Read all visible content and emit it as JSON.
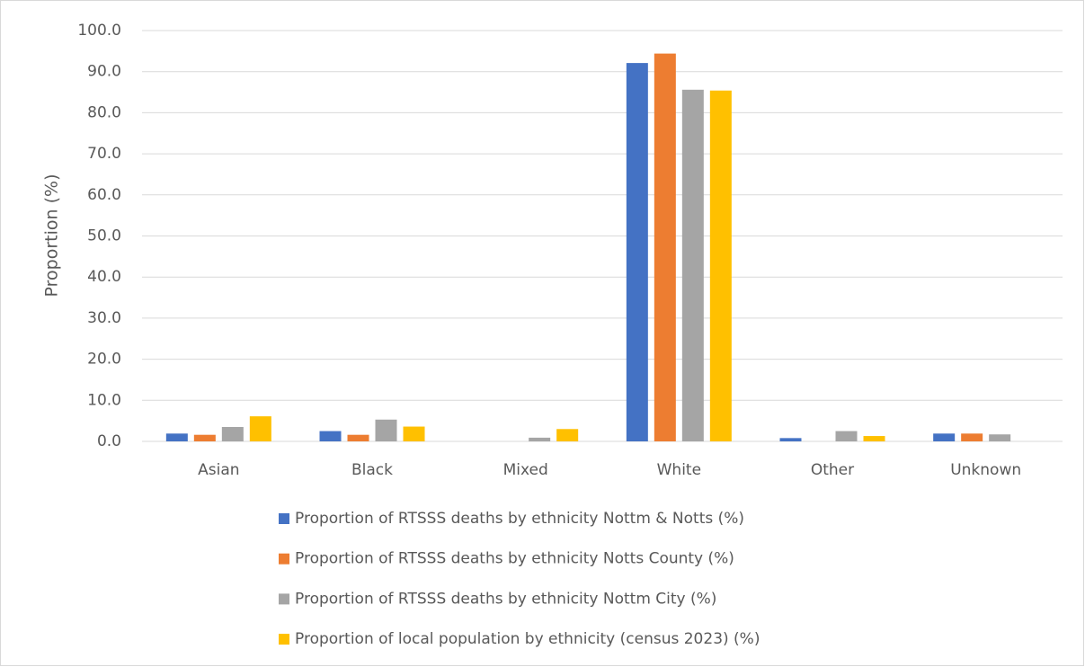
{
  "chart_data": {
    "type": "bar",
    "y_label": "Proportion (%)",
    "categories": [
      "Asian",
      "Black",
      "Mixed",
      "White",
      "Other",
      "Unknown"
    ],
    "series": [
      {
        "name": "Proportion of RTSSS deaths by ethnicity Nottm & Notts (%)",
        "color": "#4472c4",
        "values": [
          1.9,
          2.5,
          0,
          92.1,
          0.8,
          1.9
        ]
      },
      {
        "name": "Proportion of RTSSS deaths by ethnicity Notts County (%)",
        "color": "#ed7d31",
        "values": [
          1.6,
          1.6,
          0,
          94.4,
          0,
          1.9
        ]
      },
      {
        "name": "Proportion of RTSSS deaths by ethnicity Nottm City (%)",
        "color": "#a5a5a5",
        "values": [
          3.5,
          5.3,
          0.9,
          85.6,
          2.5,
          1.7
        ]
      },
      {
        "name": "Proportion of local population by ethnicity (census 2023) (%)",
        "color": "#ffc000",
        "values": [
          6.1,
          3.6,
          3.0,
          85.4,
          1.3,
          0
        ]
      }
    ],
    "ylim": [
      0,
      100
    ],
    "yticks": [
      {
        "value": 0,
        "label": "0.0"
      },
      {
        "value": 10,
        "label": "10.0"
      },
      {
        "value": 20,
        "label": "20.0"
      },
      {
        "value": 30,
        "label": "30.0"
      },
      {
        "value": 40,
        "label": "40.0"
      },
      {
        "value": 50,
        "label": "50.0"
      },
      {
        "value": 60,
        "label": "60.0"
      },
      {
        "value": 70,
        "label": "70.0"
      },
      {
        "value": 80,
        "label": "80.0"
      },
      {
        "value": 90,
        "label": "90.0"
      },
      {
        "value": 100,
        "label": "100.0"
      }
    ],
    "grid": true,
    "legend": "bottom"
  }
}
